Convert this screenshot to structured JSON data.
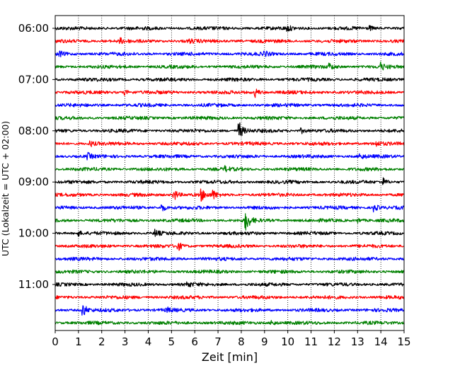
{
  "chart_data": {
    "type": "line",
    "title": "",
    "xlabel": "Zeit  [min]",
    "ylabel": "UTC (Lokalzeit = UTC + 02:00)",
    "xlim": [
      0,
      15
    ],
    "x_ticks": [
      "0",
      "1",
      "2",
      "3",
      "4",
      "5",
      "6",
      "7",
      "8",
      "9",
      "10",
      "11",
      "12",
      "13",
      "14",
      "15"
    ],
    "y_ticks": [
      "06:00",
      "07:00",
      "08:00",
      "09:00",
      "10:00",
      "11:00"
    ],
    "grid": "vertical dotted at each minute",
    "colors": [
      "#000000",
      "#ff0000",
      "#0000ff",
      "#008000"
    ],
    "trace_start_time": "06:00",
    "trace_interval_min": 15,
    "traces": [
      {
        "start": "06:00",
        "color": "#000000",
        "events": [
          {
            "t": 10.0,
            "amp": 3
          },
          {
            "t": 13.5,
            "amp": 3
          }
        ]
      },
      {
        "start": "06:15",
        "color": "#ff0000",
        "events": [
          {
            "t": 2.8,
            "amp": 3
          },
          {
            "t": 5.8,
            "amp": 2
          }
        ]
      },
      {
        "start": "06:30",
        "color": "#0000ff",
        "events": [
          {
            "t": 0.2,
            "amp": 3
          },
          {
            "t": 9.0,
            "amp": 3
          }
        ]
      },
      {
        "start": "06:45",
        "color": "#008000",
        "events": [
          {
            "t": 11.8,
            "amp": 4
          },
          {
            "t": 14.0,
            "amp": 5
          }
        ]
      },
      {
        "start": "07:00",
        "color": "#000000",
        "events": []
      },
      {
        "start": "07:15",
        "color": "#ff0000",
        "events": [
          {
            "t": 3.0,
            "amp": 3
          },
          {
            "t": 8.6,
            "amp": 6
          }
        ]
      },
      {
        "start": "07:30",
        "color": "#0000ff",
        "events": []
      },
      {
        "start": "07:45",
        "color": "#008000",
        "events": []
      },
      {
        "start": "08:00",
        "color": "#000000",
        "events": [
          {
            "t": 7.9,
            "amp": 13
          },
          {
            "t": 10.6,
            "amp": 3
          }
        ]
      },
      {
        "start": "08:15",
        "color": "#ff0000",
        "events": [
          {
            "t": 1.5,
            "amp": 4
          },
          {
            "t": 13.8,
            "amp": 3
          }
        ]
      },
      {
        "start": "08:30",
        "color": "#0000ff",
        "events": [
          {
            "t": 1.4,
            "amp": 4
          },
          {
            "t": 13.1,
            "amp": 4
          }
        ]
      },
      {
        "start": "08:45",
        "color": "#008000",
        "events": [
          {
            "t": 7.3,
            "amp": 3
          }
        ]
      },
      {
        "start": "09:00",
        "color": "#000000",
        "events": [
          {
            "t": 14.1,
            "amp": 5
          }
        ]
      },
      {
        "start": "09:15",
        "color": "#ff0000",
        "events": [
          {
            "t": 5.1,
            "amp": 9
          },
          {
            "t": 6.3,
            "amp": 7
          },
          {
            "t": 6.8,
            "amp": 5
          }
        ]
      },
      {
        "start": "09:30",
        "color": "#0000ff",
        "events": [
          {
            "t": 4.6,
            "amp": 5
          },
          {
            "t": 13.7,
            "amp": 6
          }
        ]
      },
      {
        "start": "09:45",
        "color": "#008000",
        "events": [
          {
            "t": 8.2,
            "amp": 14
          },
          {
            "t": 13.0,
            "amp": 3
          }
        ]
      },
      {
        "start": "10:00",
        "color": "#000000",
        "events": [
          {
            "t": 1.0,
            "amp": 3
          },
          {
            "t": 4.3,
            "amp": 5
          }
        ]
      },
      {
        "start": "10:15",
        "color": "#ff0000",
        "events": [
          {
            "t": 5.3,
            "amp": 5
          }
        ]
      },
      {
        "start": "10:30",
        "color": "#0000ff",
        "events": []
      },
      {
        "start": "10:45",
        "color": "#008000",
        "events": []
      },
      {
        "start": "11:00",
        "color": "#000000",
        "events": [
          {
            "t": 5.7,
            "amp": 3
          }
        ]
      },
      {
        "start": "11:15",
        "color": "#ff0000",
        "events": []
      },
      {
        "start": "11:30",
        "color": "#0000ff",
        "events": [
          {
            "t": 1.2,
            "amp": 9
          },
          {
            "t": 4.8,
            "amp": 3
          }
        ]
      },
      {
        "start": "11:45",
        "color": "#008000",
        "events": [
          {
            "t": 9.3,
            "amp": 4
          }
        ]
      }
    ]
  }
}
